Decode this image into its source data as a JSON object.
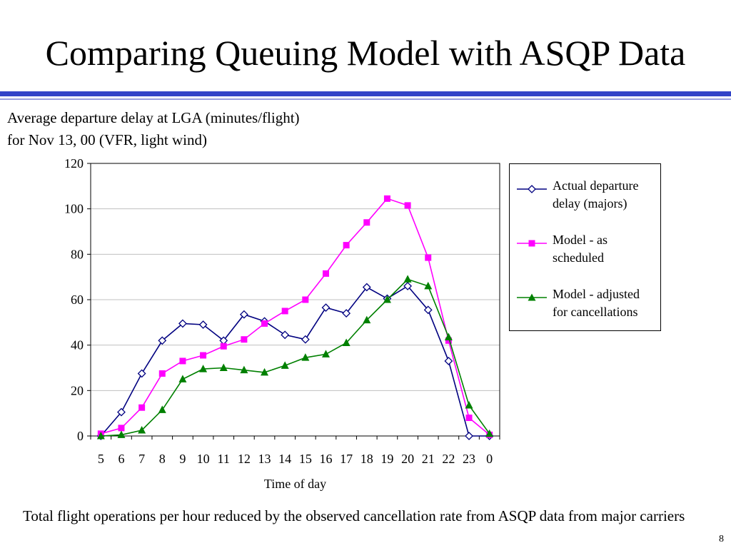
{
  "slide": {
    "title": "Comparing Queuing Model with ASQP Data",
    "footnote": "Total flight operations per hour reduced by the observed cancellation rate from ASQP data from major carriers",
    "page_number": "8"
  },
  "chart_data": {
    "type": "line",
    "title_lines": [
      "Average departure delay at LGA (minutes/flight)",
      "for Nov 13, 00 (VFR, light wind)"
    ],
    "xlabel": "Time of day",
    "ylabel": "",
    "categories": [
      "5",
      "6",
      "7",
      "8",
      "9",
      "10",
      "11",
      "12",
      "13",
      "14",
      "15",
      "16",
      "17",
      "18",
      "19",
      "20",
      "21",
      "22",
      "23",
      "0"
    ],
    "ylim": [
      0,
      120
    ],
    "yticks": [
      0,
      20,
      40,
      60,
      80,
      100,
      120
    ],
    "grid": "horizontal",
    "legend_position": "right",
    "series": [
      {
        "name": "Actual departure delay (majors)",
        "color": "#000080",
        "marker": "diamond-open",
        "values": [
          0,
          10.5,
          27.5,
          42,
          49.5,
          49,
          42,
          53.5,
          50.5,
          44.5,
          42.5,
          56.5,
          54,
          65.5,
          60.5,
          66,
          55.5,
          33,
          0,
          0
        ]
      },
      {
        "name": "Model - as scheduled",
        "color": "#ff00ff",
        "marker": "square",
        "values": [
          1,
          3.5,
          12.5,
          27.5,
          33,
          35.5,
          39.5,
          42.5,
          49.5,
          55,
          60,
          71.5,
          84,
          94,
          104.5,
          101.5,
          78.5,
          42,
          8,
          0.5
        ]
      },
      {
        "name": "Model - adjusted for cancellations",
        "color": "#008000",
        "marker": "triangle",
        "values": [
          0,
          0.5,
          2.5,
          11.5,
          25,
          29.5,
          30,
          29,
          28,
          31,
          34.5,
          36,
          41,
          51,
          60,
          69,
          66,
          43.5,
          13.5,
          1
        ]
      }
    ],
    "legend_lines": [
      [
        "Actual departure",
        "delay (majors)"
      ],
      [
        "Model - as",
        "scheduled"
      ],
      [
        "Model - adjusted",
        "for cancellations"
      ]
    ]
  }
}
